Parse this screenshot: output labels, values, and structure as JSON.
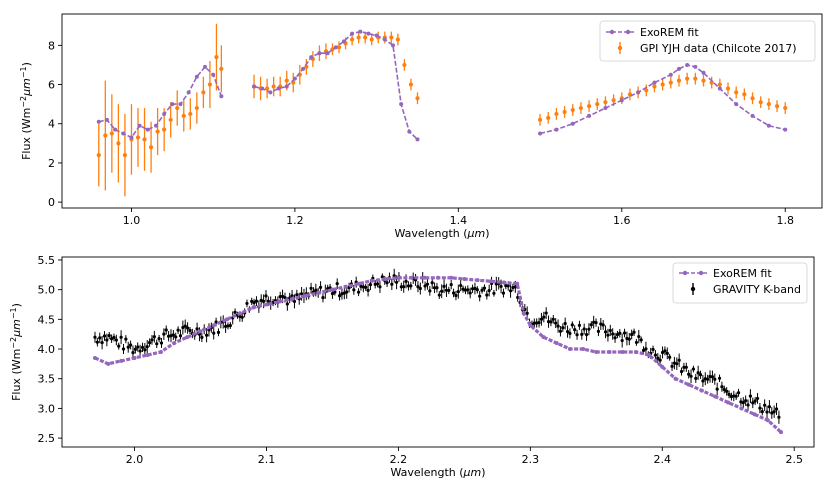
{
  "colors": {
    "model": "#9467bd",
    "gpi": "#ff7f0e",
    "gravity": "#000000"
  },
  "chart_data": [
    {
      "type": "line",
      "name": "gpi-panel",
      "xlabel_prefix": "Wavelength (",
      "xlabel_unit": "μm",
      "xlabel_suffix": ")",
      "ylabel_prefix": "Flux (Wm",
      "ylabel_exp1": "−2",
      "ylabel_mid": "μm",
      "ylabel_exp2": "−1",
      "ylabel_suffix": ")",
      "xlim": [
        0.915,
        1.845
      ],
      "ylim": [
        -0.3,
        9.6
      ],
      "xticks": [
        1.0,
        1.2,
        1.4,
        1.6,
        1.8
      ],
      "xtick_labels": [
        "1.0",
        "1.2",
        "1.4",
        "1.6",
        "1.8"
      ],
      "yticks": [
        0,
        2,
        4,
        6,
        8
      ],
      "ytick_labels": [
        "0",
        "2",
        "4",
        "6",
        "8"
      ],
      "legend": [
        "ExoREM fit",
        "GPI YJH data (Chilcote 2017)"
      ],
      "legend_position": "upper-right",
      "series": [
        {
          "name": "ExoREM fit",
          "style": "dashed-line-with-dots",
          "segments": [
            {
              "x": [
                0.96,
                0.97,
                0.98,
                0.99,
                1.0,
                1.01,
                1.02,
                1.03,
                1.04,
                1.05,
                1.06,
                1.07,
                1.08,
                1.09,
                1.1,
                1.11
              ],
              "y": [
                4.1,
                4.2,
                3.7,
                3.5,
                3.3,
                3.9,
                3.7,
                3.9,
                4.5,
                5.0,
                5.0,
                5.6,
                6.4,
                6.9,
                6.5,
                5.4
              ]
            },
            {
              "x": [
                1.15,
                1.16,
                1.17,
                1.18,
                1.19,
                1.2,
                1.21,
                1.22,
                1.23,
                1.24,
                1.25,
                1.26,
                1.27,
                1.28,
                1.29,
                1.3,
                1.31,
                1.32,
                1.33,
                1.34,
                1.35
              ],
              "y": [
                5.9,
                5.8,
                5.6,
                5.8,
                5.9,
                6.3,
                6.8,
                7.4,
                7.6,
                7.6,
                7.9,
                8.2,
                8.6,
                8.7,
                8.6,
                8.5,
                8.3,
                8.0,
                5.0,
                3.6,
                3.2
              ]
            },
            {
              "x": [
                1.5,
                1.52,
                1.54,
                1.56,
                1.58,
                1.6,
                1.62,
                1.64,
                1.66,
                1.67,
                1.68,
                1.69,
                1.7,
                1.72,
                1.74,
                1.76,
                1.78,
                1.8
              ],
              "y": [
                3.5,
                3.7,
                4.0,
                4.4,
                4.8,
                5.2,
                5.6,
                6.1,
                6.5,
                6.8,
                7.0,
                6.9,
                6.6,
                5.8,
                5.0,
                4.4,
                3.9,
                3.7
              ]
            }
          ]
        },
        {
          "name": "GPI YJH data (Chilcote 2017)",
          "style": "points-with-errorbars",
          "segments": [
            {
              "x": [
                0.96,
                0.968,
                0.976,
                0.984,
                0.992,
                1.0,
                1.008,
                1.016,
                1.024,
                1.032,
                1.04,
                1.048,
                1.056,
                1.064,
                1.072,
                1.08,
                1.088,
                1.096,
                1.104,
                1.11
              ],
              "y": [
                2.4,
                3.4,
                3.5,
                3.0,
                2.4,
                3.2,
                3.3,
                3.2,
                2.8,
                3.6,
                3.7,
                4.2,
                4.8,
                4.4,
                4.5,
                4.8,
                5.6,
                6.0,
                7.4,
                6.8
              ],
              "err": [
                1.6,
                2.8,
                2.0,
                2.0,
                2.1,
                1.8,
                1.5,
                1.6,
                1.3,
                1.2,
                1.1,
                0.9,
                0.9,
                0.8,
                0.8,
                0.8,
                0.8,
                1.2,
                1.7,
                1.2
              ]
            },
            {
              "x": [
                1.15,
                1.158,
                1.166,
                1.174,
                1.182,
                1.19,
                1.198,
                1.206,
                1.214,
                1.222,
                1.23,
                1.238,
                1.246,
                1.254,
                1.262,
                1.27,
                1.278,
                1.286,
                1.294,
                1.302,
                1.31,
                1.318,
                1.326,
                1.334,
                1.342,
                1.35
              ],
              "y": [
                5.9,
                5.8,
                5.8,
                5.9,
                5.9,
                6.2,
                6.1,
                6.5,
                6.9,
                7.3,
                7.6,
                7.7,
                7.8,
                7.9,
                8.1,
                8.3,
                8.4,
                8.4,
                8.3,
                8.4,
                8.4,
                8.4,
                8.3,
                7.0,
                6.0,
                5.3
              ],
              "err": [
                0.6,
                0.6,
                0.5,
                0.5,
                0.5,
                0.5,
                0.5,
                0.5,
                0.4,
                0.4,
                0.4,
                0.4,
                0.3,
                0.3,
                0.3,
                0.3,
                0.3,
                0.3,
                0.3,
                0.3,
                0.3,
                0.3,
                0.3,
                0.3,
                0.3,
                0.3
              ]
            },
            {
              "x": [
                1.5,
                1.51,
                1.52,
                1.53,
                1.54,
                1.55,
                1.56,
                1.57,
                1.58,
                1.59,
                1.6,
                1.61,
                1.62,
                1.63,
                1.64,
                1.65,
                1.66,
                1.67,
                1.68,
                1.69,
                1.7,
                1.71,
                1.72,
                1.73,
                1.74,
                1.75,
                1.76,
                1.77,
                1.78,
                1.79,
                1.8
              ],
              "y": [
                4.2,
                4.3,
                4.5,
                4.6,
                4.7,
                4.8,
                4.9,
                5.0,
                5.1,
                5.2,
                5.3,
                5.5,
                5.6,
                5.7,
                5.9,
                6.0,
                6.1,
                6.2,
                6.3,
                6.3,
                6.2,
                6.1,
                6.0,
                5.8,
                5.6,
                5.5,
                5.3,
                5.1,
                5.0,
                4.9,
                4.8
              ],
              "err": [
                0.3,
                0.3,
                0.3,
                0.3,
                0.3,
                0.3,
                0.3,
                0.3,
                0.3,
                0.3,
                0.3,
                0.3,
                0.3,
                0.3,
                0.3,
                0.3,
                0.3,
                0.3,
                0.3,
                0.3,
                0.3,
                0.3,
                0.3,
                0.3,
                0.3,
                0.3,
                0.3,
                0.3,
                0.3,
                0.3,
                0.3
              ]
            }
          ]
        }
      ]
    },
    {
      "type": "line",
      "name": "gravity-panel",
      "xlabel_prefix": "Wavelength (",
      "xlabel_unit": "μm",
      "xlabel_suffix": ")",
      "ylabel_prefix": "Flux (Wm",
      "ylabel_exp1": "−2",
      "ylabel_mid": "μm",
      "ylabel_exp2": "−1",
      "ylabel_suffix": ")",
      "xlim": [
        1.945,
        2.515
      ],
      "ylim": [
        2.35,
        5.55
      ],
      "xticks": [
        2.0,
        2.1,
        2.2,
        2.3,
        2.4,
        2.5
      ],
      "xtick_labels": [
        "2.0",
        "2.1",
        "2.2",
        "2.3",
        "2.4",
        "2.5"
      ],
      "yticks": [
        2.5,
        3.0,
        3.5,
        4.0,
        4.5,
        5.0,
        5.5
      ],
      "ytick_labels": [
        "2.5",
        "3.0",
        "3.5",
        "4.0",
        "4.5",
        "5.0",
        "5.5"
      ],
      "legend": [
        "ExoREM fit",
        "GRAVITY K-band"
      ],
      "legend_position": "upper-right",
      "series": [
        {
          "name": "ExoREM fit",
          "style": "dense-dashed-line",
          "x": [
            1.97,
            1.98,
            1.99,
            2.0,
            2.01,
            2.02,
            2.03,
            2.04,
            2.05,
            2.06,
            2.07,
            2.08,
            2.09,
            2.1,
            2.11,
            2.12,
            2.13,
            2.14,
            2.15,
            2.16,
            2.17,
            2.18,
            2.19,
            2.2,
            2.21,
            2.22,
            2.23,
            2.24,
            2.25,
            2.26,
            2.27,
            2.28,
            2.29,
            2.295,
            2.3,
            2.31,
            2.32,
            2.33,
            2.34,
            2.35,
            2.36,
            2.37,
            2.38,
            2.39,
            2.4,
            2.41,
            2.42,
            2.43,
            2.44,
            2.45,
            2.46,
            2.47,
            2.48,
            2.49
          ],
          "y": [
            3.85,
            3.75,
            3.8,
            3.85,
            3.9,
            3.95,
            4.1,
            4.2,
            4.3,
            4.4,
            4.5,
            4.6,
            4.7,
            4.75,
            4.8,
            4.85,
            4.9,
            4.95,
            5.0,
            5.05,
            5.1,
            5.15,
            5.18,
            5.2,
            5.2,
            5.2,
            5.2,
            5.2,
            5.18,
            5.16,
            5.14,
            5.12,
            5.1,
            4.6,
            4.4,
            4.2,
            4.1,
            4.0,
            4.0,
            3.95,
            3.95,
            3.95,
            3.95,
            3.9,
            3.7,
            3.5,
            3.4,
            3.3,
            3.2,
            3.1,
            3.0,
            2.9,
            2.8,
            2.6
          ]
        },
        {
          "name": "GRAVITY K-band",
          "style": "points-with-errorbars",
          "base_x": [
            1.97,
            1.98,
            1.99,
            2.0,
            2.01,
            2.02,
            2.03,
            2.04,
            2.05,
            2.06,
            2.07,
            2.08,
            2.09,
            2.1,
            2.11,
            2.12,
            2.13,
            2.14,
            2.15,
            2.16,
            2.17,
            2.18,
            2.19,
            2.2,
            2.21,
            2.22,
            2.23,
            2.24,
            2.25,
            2.26,
            2.27,
            2.28,
            2.29,
            2.295,
            2.3,
            2.31,
            2.32,
            2.33,
            2.34,
            2.35,
            2.36,
            2.37,
            2.38,
            2.39,
            2.4,
            2.41,
            2.42,
            2.43,
            2.44,
            2.45,
            2.46,
            2.47,
            2.48,
            2.49
          ],
          "base_y": [
            4.2,
            4.2,
            4.1,
            4.0,
            4.1,
            4.2,
            4.25,
            4.3,
            4.3,
            4.35,
            4.45,
            4.6,
            4.8,
            4.85,
            4.9,
            4.8,
            4.9,
            4.95,
            5.0,
            5.0,
            5.05,
            5.1,
            5.15,
            5.15,
            5.1,
            5.1,
            5.0,
            5.0,
            5.0,
            5.0,
            5.0,
            5.05,
            5.0,
            4.7,
            4.5,
            4.55,
            4.4,
            4.35,
            4.35,
            4.35,
            4.3,
            4.25,
            4.2,
            4.0,
            3.9,
            3.75,
            3.6,
            3.5,
            3.45,
            3.3,
            3.2,
            3.1,
            3.0,
            2.85
          ],
          "spacing": 0.0018,
          "error": 0.08
        }
      ]
    }
  ]
}
